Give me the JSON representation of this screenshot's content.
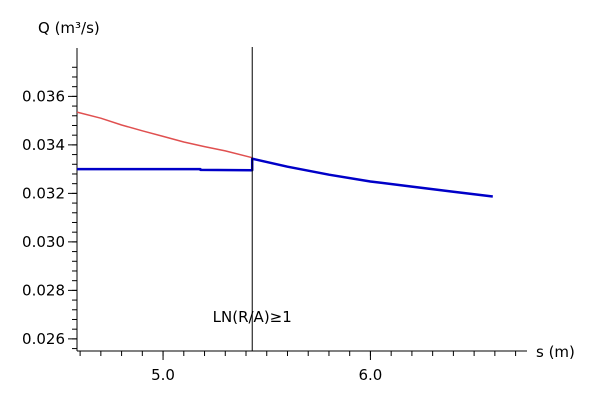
{
  "chart_data": {
    "type": "line",
    "xlabel": "s (m)",
    "ylabel": "Q (m³/s)",
    "xlim": [
      4.585,
      6.755
    ],
    "ylim": [
      0.0255,
      0.0375
    ],
    "x_major_ticks": [
      5.0,
      6.0
    ],
    "x_tick_labels": [
      "5.0",
      "6.0"
    ],
    "y_major_ticks": [
      0.026,
      0.028,
      0.03,
      0.032,
      0.034,
      0.036
    ],
    "y_tick_labels": [
      "0.026",
      "0.028",
      "0.030",
      "0.032",
      "0.034",
      "0.036"
    ],
    "grid": false,
    "series": [
      {
        "color": "#e05050",
        "x": [
          4.585,
          4.7,
          4.8,
          4.9,
          5.0,
          5.1,
          5.2,
          5.3,
          5.43
        ],
        "y": [
          0.03535,
          0.0351,
          0.03482,
          0.03458,
          0.03435,
          0.03412,
          0.03393,
          0.03375,
          0.03347
        ]
      },
      {
        "color": "#0000c8",
        "x": [
          4.585,
          5.18,
          5.18,
          5.43,
          5.43,
          5.6,
          5.8,
          6.0,
          6.2,
          6.4,
          6.59
        ],
        "y": [
          0.033,
          0.033,
          0.03297,
          0.03295,
          0.03343,
          0.0331,
          0.03277,
          0.03249,
          0.03228,
          0.03207,
          0.03187
        ]
      }
    ],
    "vline": {
      "x": 5.43,
      "label": "LN(R/A)≥1"
    }
  }
}
